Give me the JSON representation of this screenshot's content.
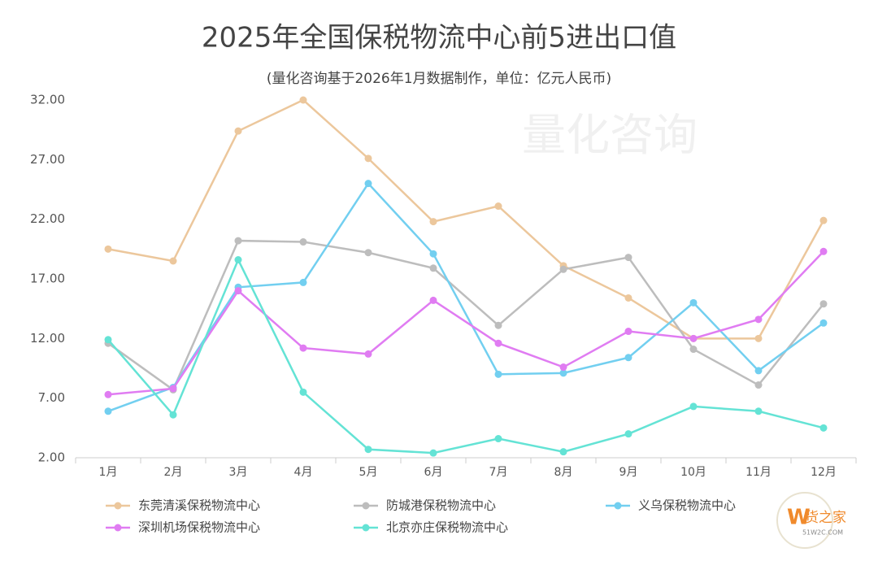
{
  "chart_data": {
    "type": "line",
    "title": "2025年全国保税物流中心前5进出口值",
    "subtitle": "(量化咨询基于2026年1月数据制作，单位：亿元人民币)",
    "watermark": "量化咨询",
    "logo": "货之家",
    "logo_url": "51W2C.COM",
    "categories": [
      "1月",
      "2月",
      "3月",
      "4月",
      "5月",
      "6月",
      "7月",
      "8月",
      "9月",
      "10月",
      "11月",
      "12月"
    ],
    "series": [
      {
        "name": "东莞清溪保税物流中心",
        "color": "#ecc79c",
        "values": [
          19.5,
          18.5,
          29.4,
          32.0,
          27.1,
          21.8,
          23.1,
          18.1,
          15.4,
          12.0,
          12.0,
          21.9
        ]
      },
      {
        "name": "防城港保税物流中心",
        "color": "#bdbdbd",
        "values": [
          11.6,
          7.7,
          20.2,
          20.1,
          19.2,
          17.9,
          13.1,
          17.8,
          18.8,
          11.1,
          8.1,
          14.9
        ]
      },
      {
        "name": "义乌保税物流中心",
        "color": "#72cff0",
        "values": [
          5.9,
          7.9,
          16.3,
          16.7,
          25.0,
          19.1,
          9.0,
          9.1,
          10.4,
          15.0,
          9.3,
          13.3
        ]
      },
      {
        "name": "深圳机场保税物流中心",
        "color": "#e07cf2",
        "values": [
          7.3,
          7.8,
          16.0,
          11.2,
          10.7,
          15.2,
          11.6,
          9.6,
          12.6,
          12.0,
          13.6,
          19.3
        ]
      },
      {
        "name": "北京亦庄保税物流中心",
        "color": "#64e3d5",
        "values": [
          11.9,
          5.6,
          18.6,
          7.5,
          2.7,
          2.4,
          3.6,
          2.5,
          4.0,
          6.3,
          5.9,
          4.5
        ]
      }
    ],
    "ylim": [
      2,
      32
    ],
    "yticks": [
      {
        "value": 2,
        "label": "2.00"
      },
      {
        "value": 7,
        "label": "7.00"
      },
      {
        "value": 12,
        "label": "12.00"
      },
      {
        "value": 17,
        "label": "17.00"
      },
      {
        "value": 22,
        "label": "22.00"
      },
      {
        "value": 27,
        "label": "27.00"
      },
      {
        "value": 32,
        "label": "32.00"
      }
    ],
    "grid": false
  }
}
